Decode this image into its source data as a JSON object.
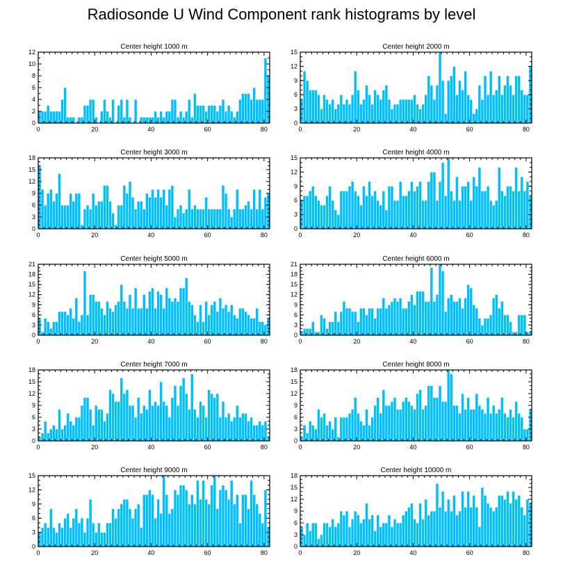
{
  "title": "Radiosonde U Wind Component rank histograms by level",
  "colors": {
    "bar": "#00bfff",
    "axis": "#000000",
    "background": "#ffffff"
  },
  "chart_data": [
    {
      "type": "bar",
      "title": "Center height 1000 m",
      "xlim": [
        0,
        82
      ],
      "ylim": [
        0,
        12
      ],
      "xticks": [
        0,
        20,
        40,
        60,
        80
      ],
      "yticks": [
        0,
        2,
        4,
        6,
        8,
        10,
        12
      ],
      "values": [
        2,
        2,
        2,
        3,
        2,
        2,
        2,
        2,
        4,
        6,
        1,
        1,
        1,
        0,
        1,
        1,
        3,
        3,
        4,
        4,
        1,
        0,
        2,
        4,
        2,
        1,
        4,
        0,
        3,
        4,
        1,
        4,
        1,
        0,
        4,
        0,
        1,
        1,
        1,
        1,
        1,
        2,
        1,
        2,
        1,
        2,
        2,
        4,
        4,
        1,
        2,
        1,
        2,
        4,
        1,
        5,
        3,
        3,
        3,
        2,
        3,
        3,
        3,
        2,
        3,
        4,
        2,
        3,
        2,
        1,
        2,
        4,
        5,
        5,
        5,
        4,
        6,
        4,
        4,
        4,
        11,
        8
      ]
    },
    {
      "type": "bar",
      "title": "Center height 2000 m",
      "xlim": [
        0,
        82
      ],
      "ylim": [
        0,
        15
      ],
      "xticks": [
        0,
        20,
        40,
        60,
        80
      ],
      "yticks": [
        0,
        3,
        6,
        9,
        12,
        15
      ],
      "values": [
        5,
        11,
        9,
        7,
        7,
        7,
        6,
        3,
        6,
        5,
        4,
        5,
        3,
        4,
        6,
        4,
        5,
        4,
        6,
        11,
        7,
        4,
        5,
        8,
        6,
        4,
        7,
        6,
        5,
        7,
        8,
        5,
        3,
        4,
        4,
        5,
        5,
        5,
        5,
        5,
        6,
        4,
        3,
        4,
        6,
        10,
        8,
        5,
        8,
        15,
        9,
        2,
        9,
        10,
        12,
        6,
        9,
        7,
        11,
        6,
        5,
        2,
        3,
        8,
        5,
        10,
        6,
        11,
        6,
        7,
        10,
        6,
        8,
        10,
        8,
        6,
        10,
        10,
        7,
        6,
        6,
        12
      ]
    },
    {
      "type": "bar",
      "title": "Center height 3000 m",
      "xlim": [
        0,
        82
      ],
      "ylim": [
        0,
        18
      ],
      "xticks": [
        0,
        20,
        40,
        60,
        80
      ],
      "yticks": [
        0,
        3,
        6,
        9,
        12,
        15,
        18
      ],
      "values": [
        16,
        10,
        6,
        9,
        10,
        7,
        9,
        14,
        6,
        6,
        6,
        9,
        7,
        9,
        9,
        1,
        5,
        6,
        5,
        9,
        6,
        7,
        7,
        11,
        11,
        7,
        4,
        1,
        6,
        6,
        11,
        9,
        12,
        8,
        5,
        7,
        7,
        5,
        9,
        8,
        10,
        8,
        10,
        8,
        10,
        6,
        10,
        11,
        3,
        5,
        6,
        4,
        5,
        10,
        5,
        6,
        5,
        5,
        5,
        8,
        5,
        5,
        5,
        5,
        5,
        11,
        9,
        5,
        3,
        5,
        10,
        5,
        5,
        6,
        7,
        5,
        10,
        5,
        10,
        5,
        8,
        9
      ]
    },
    {
      "type": "bar",
      "title": "Center height 4000 m",
      "xlim": [
        0,
        82
      ],
      "ylim": [
        0,
        15
      ],
      "xticks": [
        0,
        20,
        40,
        60,
        80
      ],
      "yticks": [
        0,
        3,
        6,
        9,
        12,
        15
      ],
      "values": [
        6,
        7,
        7,
        8,
        9,
        7,
        6,
        5,
        5,
        7,
        9,
        6,
        4,
        3,
        8,
        8,
        8,
        9,
        10,
        8,
        7,
        5,
        9,
        7,
        10,
        7,
        8,
        6,
        5,
        8,
        4,
        9,
        9,
        6,
        6,
        10,
        7,
        7,
        8,
        10,
        8,
        9,
        10,
        6,
        6,
        10,
        12,
        12,
        6,
        10,
        14,
        7,
        15,
        8,
        6,
        11,
        6,
        9,
        9,
        10,
        6,
        11,
        9,
        13,
        8,
        8,
        9,
        6,
        5,
        6,
        13,
        8,
        7,
        9,
        9,
        8,
        13,
        8,
        11,
        8,
        10,
        7
      ]
    },
    {
      "type": "bar",
      "title": "Center height 5000 m",
      "xlim": [
        0,
        82
      ],
      "ylim": [
        0,
        21
      ],
      "xticks": [
        0,
        20,
        40,
        60,
        80
      ],
      "yticks": [
        0,
        3,
        6,
        9,
        12,
        15,
        18,
        21
      ],
      "values": [
        5,
        1,
        5,
        4,
        2,
        4,
        4,
        7,
        7,
        7,
        6,
        8,
        5,
        11,
        4,
        6,
        19,
        6,
        12,
        12,
        10,
        10,
        8,
        6,
        10,
        8,
        7,
        9,
        10,
        15,
        10,
        8,
        12,
        8,
        14,
        8,
        8,
        12,
        8,
        13,
        14,
        8,
        13,
        12,
        8,
        14,
        11,
        10,
        11,
        10,
        14,
        14,
        17,
        10,
        9,
        6,
        4,
        9,
        4,
        10,
        6,
        9,
        10,
        7,
        11,
        8,
        9,
        7,
        9,
        6,
        5,
        8,
        8,
        7,
        6,
        5,
        5,
        8,
        4,
        4,
        3,
        5
      ]
    },
    {
      "type": "bar",
      "title": "Center height 6000 m",
      "xlim": [
        0,
        82
      ],
      "ylim": [
        0,
        21
      ],
      "xticks": [
        0,
        20,
        40,
        60,
        80
      ],
      "yticks": [
        0,
        3,
        6,
        9,
        12,
        15,
        18,
        21
      ],
      "values": [
        1,
        2,
        2,
        2,
        4,
        1,
        1,
        6,
        5,
        2,
        4,
        4,
        7,
        4,
        7,
        10,
        8,
        8,
        7,
        7,
        4,
        8,
        8,
        6,
        8,
        8,
        5,
        8,
        8,
        11,
        8,
        9,
        10,
        11,
        10,
        11,
        8,
        8,
        10,
        12,
        9,
        13,
        13,
        13,
        10,
        10,
        20,
        10,
        12,
        21,
        19,
        7,
        11,
        12,
        10,
        10,
        11,
        8,
        11,
        15,
        14,
        9,
        8,
        5,
        3,
        5,
        5,
        6,
        11,
        12,
        8,
        10,
        6,
        6,
        4,
        1,
        1,
        6,
        6,
        6,
        1,
        1
      ]
    },
    {
      "type": "bar",
      "title": "Center height 7000 m",
      "xlim": [
        0,
        82
      ],
      "ylim": [
        0,
        18
      ],
      "xticks": [
        0,
        20,
        40,
        60,
        80
      ],
      "yticks": [
        0,
        3,
        6,
        9,
        12,
        15,
        18
      ],
      "values": [
        1,
        2,
        5,
        2,
        3,
        4,
        3,
        8,
        3,
        4,
        7,
        5,
        4,
        6,
        6,
        9,
        11,
        11,
        8,
        4,
        9,
        8,
        8,
        5,
        7,
        13,
        12,
        10,
        10,
        16,
        12,
        13,
        9,
        9,
        6,
        11,
        7,
        9,
        8,
        13,
        9,
        10,
        9,
        15,
        10,
        9,
        6,
        11,
        14,
        9,
        14,
        16,
        12,
        8,
        17,
        8,
        6,
        10,
        9,
        6,
        13,
        12,
        11,
        12,
        6,
        10,
        6,
        7,
        5,
        6,
        9,
        6,
        7,
        7,
        5,
        6,
        4,
        4,
        5,
        4,
        5,
        1
      ]
    },
    {
      "type": "bar",
      "title": "Center height 8000 m",
      "xlim": [
        0,
        82
      ],
      "ylim": [
        0,
        18
      ],
      "xticks": [
        0,
        20,
        40,
        60,
        80
      ],
      "yticks": [
        0,
        3,
        6,
        9,
        12,
        15,
        18
      ],
      "values": [
        1,
        4,
        2,
        5,
        4,
        3,
        8,
        6,
        7,
        4,
        5,
        3,
        6,
        1,
        6,
        6,
        6,
        7,
        8,
        11,
        7,
        5,
        4,
        8,
        4,
        6,
        9,
        11,
        7,
        13,
        9,
        9,
        10,
        11,
        8,
        8,
        10,
        11,
        10,
        9,
        8,
        12,
        13,
        8,
        9,
        14,
        14,
        11,
        11,
        14,
        10,
        10,
        18,
        17,
        9,
        9,
        7,
        12,
        8,
        11,
        8,
        8,
        12,
        9,
        8,
        7,
        11,
        7,
        9,
        7,
        8,
        11,
        7,
        6,
        8,
        6,
        10,
        7,
        6,
        3,
        3,
        8
      ]
    },
    {
      "type": "bar",
      "title": "Center height 9000 m",
      "xlim": [
        0,
        82
      ],
      "ylim": [
        0,
        15
      ],
      "xticks": [
        0,
        20,
        40,
        60,
        80
      ],
      "yticks": [
        0,
        3,
        6,
        9,
        12,
        15
      ],
      "values": [
        3,
        4,
        5,
        4,
        8,
        4,
        3,
        5,
        4,
        6,
        7,
        4,
        6,
        8,
        5,
        6,
        3,
        6,
        10,
        5,
        3,
        5,
        3,
        3,
        5,
        5,
        8,
        6,
        8,
        9,
        10,
        10,
        8,
        6,
        8,
        9,
        4,
        11,
        11,
        12,
        11,
        6,
        10,
        7,
        15,
        11,
        7,
        8,
        12,
        11,
        13,
        13,
        12,
        9,
        11,
        9,
        14,
        10,
        14,
        10,
        9,
        13,
        15,
        8,
        12,
        13,
        12,
        10,
        14,
        9,
        11,
        5,
        11,
        11,
        8,
        14,
        11,
        9,
        7,
        5,
        12,
        4
      ]
    },
    {
      "type": "bar",
      "title": "Center height 10000 m",
      "xlim": [
        0,
        82
      ],
      "ylim": [
        0,
        18
      ],
      "xticks": [
        0,
        20,
        40,
        60,
        80
      ],
      "yticks": [
        0,
        3,
        6,
        9,
        12,
        15,
        18
      ],
      "values": [
        5,
        3,
        6,
        4,
        6,
        6,
        2,
        3,
        6,
        6,
        5,
        7,
        5,
        6,
        9,
        8,
        9,
        5,
        7,
        9,
        8,
        6,
        7,
        11,
        7,
        8,
        4,
        8,
        5,
        6,
        6,
        8,
        5,
        7,
        6,
        6,
        8,
        9,
        10,
        11,
        7,
        6,
        11,
        7,
        12,
        8,
        9,
        9,
        16,
        10,
        14,
        9,
        12,
        9,
        13,
        8,
        9,
        14,
        10,
        14,
        10,
        13,
        10,
        5,
        15,
        13,
        11,
        10,
        9,
        10,
        13,
        13,
        12,
        14,
        11,
        14,
        12,
        13,
        10,
        8,
        12,
        11
      ]
    }
  ]
}
